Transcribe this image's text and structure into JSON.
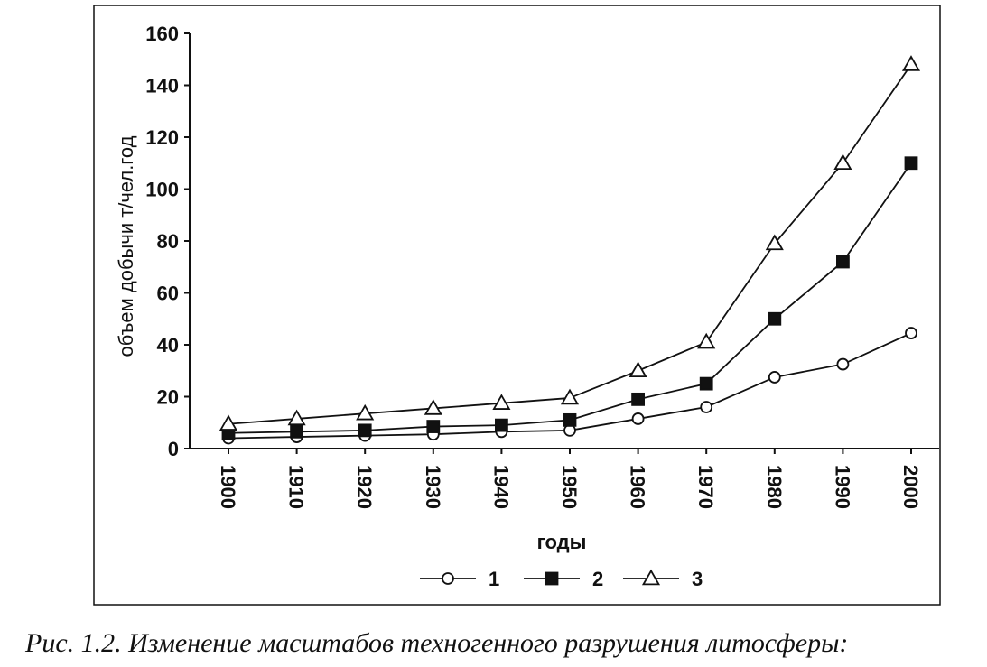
{
  "chart_data": {
    "type": "line",
    "title": "",
    "xlabel": "годы",
    "ylabel": "объем добычи т/чел.год",
    "x": [
      1900,
      1910,
      1920,
      1930,
      1940,
      1950,
      1960,
      1970,
      1980,
      1990,
      2000
    ],
    "ylim": [
      0,
      160
    ],
    "yticks": [
      0,
      20,
      40,
      60,
      80,
      100,
      120,
      140,
      160
    ],
    "grid": false,
    "legend": "bottom",
    "series": [
      {
        "name": "1",
        "marker": "circle-open",
        "values": [
          4,
          4.5,
          5,
          5.5,
          6.5,
          7,
          11.5,
          16,
          27.5,
          32.5,
          44.5
        ]
      },
      {
        "name": "2",
        "marker": "square-filled",
        "values": [
          6,
          6.5,
          7,
          8.5,
          9,
          11,
          19,
          25,
          50,
          72,
          110
        ]
      },
      {
        "name": "3",
        "marker": "triangle-open",
        "values": [
          9.5,
          11.5,
          13.5,
          15.5,
          17.5,
          19.5,
          30,
          41,
          79,
          110,
          148
        ]
      }
    ]
  },
  "colors": {
    "line": "#111111",
    "background": "#ffffff"
  },
  "caption": "Рис. 1.2. Изменение масштабов техногенного разрушения литосферы:"
}
